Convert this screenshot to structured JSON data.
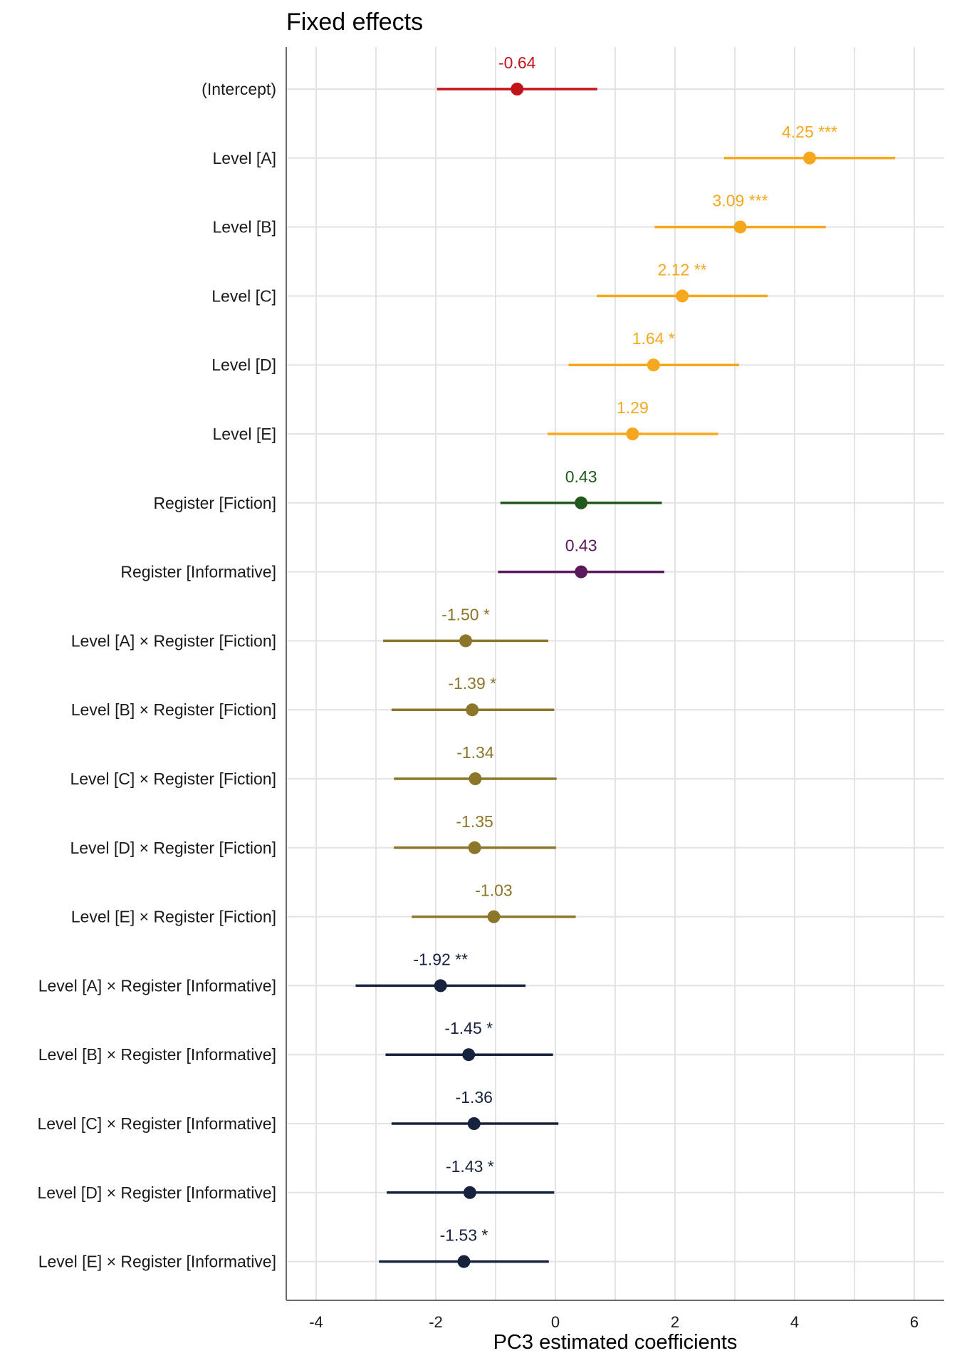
{
  "chart_data": {
    "type": "forest",
    "title": "Fixed effects",
    "xlabel": "PC3 estimated coefficients",
    "ylabel": "",
    "xlim": [
      -4.5,
      6.5
    ],
    "xticks": [
      -4,
      -2,
      0,
      2,
      4,
      6
    ],
    "xtick_labels": [
      "-4",
      "-2",
      "0",
      "2",
      "4",
      "6"
    ],
    "grid": true,
    "legend": "none",
    "terms": [
      {
        "label": "(Intercept)",
        "estimate": -0.64,
        "ci_low": -1.98,
        "ci_high": 0.7,
        "value_label": "-0.64",
        "color": "#c0141a"
      },
      {
        "label": "Level [A]",
        "estimate": 4.25,
        "ci_low": 2.82,
        "ci_high": 5.68,
        "value_label": "4.25 ***",
        "color": "#f5a71d"
      },
      {
        "label": "Level [B]",
        "estimate": 3.09,
        "ci_low": 1.66,
        "ci_high": 4.52,
        "value_label": "3.09 ***",
        "color": "#f5a71d"
      },
      {
        "label": "Level [C]",
        "estimate": 2.12,
        "ci_low": 0.69,
        "ci_high": 3.55,
        "value_label": "2.12 **",
        "color": "#f5a71d"
      },
      {
        "label": "Level [D]",
        "estimate": 1.64,
        "ci_low": 0.22,
        "ci_high": 3.07,
        "value_label": "1.64 *",
        "color": "#f5a71d"
      },
      {
        "label": "Level [E]",
        "estimate": 1.29,
        "ci_low": -0.13,
        "ci_high": 2.72,
        "value_label": "1.29",
        "color": "#f5a71d"
      },
      {
        "label": "Register [Fiction]",
        "estimate": 0.43,
        "ci_low": -0.92,
        "ci_high": 1.78,
        "value_label": "0.43",
        "color": "#1f5a1c"
      },
      {
        "label": "Register [Informative]",
        "estimate": 0.43,
        "ci_low": -0.96,
        "ci_high": 1.82,
        "value_label": "0.43",
        "color": "#5b1a5c"
      },
      {
        "label": "Level [A] × Register [Fiction]",
        "estimate": -1.5,
        "ci_low": -2.88,
        "ci_high": -0.12,
        "value_label": "-1.50 *",
        "color": "#8c7629"
      },
      {
        "label": "Level [B] × Register [Fiction]",
        "estimate": -1.39,
        "ci_low": -2.74,
        "ci_high": -0.02,
        "value_label": "-1.39 *",
        "color": "#8c7629"
      },
      {
        "label": "Level [C] × Register [Fiction]",
        "estimate": -1.34,
        "ci_low": -2.7,
        "ci_high": 0.02,
        "value_label": "-1.34",
        "color": "#8c7629"
      },
      {
        "label": "Level [D] × Register [Fiction]",
        "estimate": -1.35,
        "ci_low": -2.7,
        "ci_high": 0.01,
        "value_label": "-1.35",
        "color": "#8c7629"
      },
      {
        "label": "Level [E] × Register [Fiction]",
        "estimate": -1.03,
        "ci_low": -2.4,
        "ci_high": 0.34,
        "value_label": "-1.03",
        "color": "#8c7629"
      },
      {
        "label": "Level [A] × Register [Informative]",
        "estimate": -1.92,
        "ci_low": -3.34,
        "ci_high": -0.5,
        "value_label": "-1.92 **",
        "color": "#17223f"
      },
      {
        "label": "Level [B] × Register [Informative]",
        "estimate": -1.45,
        "ci_low": -2.84,
        "ci_high": -0.04,
        "value_label": "-1.45 *",
        "color": "#17223f"
      },
      {
        "label": "Level [C] × Register [Informative]",
        "estimate": -1.36,
        "ci_low": -2.74,
        "ci_high": 0.05,
        "value_label": "-1.36",
        "color": "#17223f"
      },
      {
        "label": "Level [D] × Register [Informative]",
        "estimate": -1.43,
        "ci_low": -2.82,
        "ci_high": -0.02,
        "value_label": "-1.43 *",
        "color": "#17223f"
      },
      {
        "label": "Level [E] × Register [Informative]",
        "estimate": -1.53,
        "ci_low": -2.95,
        "ci_high": -0.11,
        "value_label": "-1.53 *",
        "color": "#17223f"
      }
    ]
  }
}
